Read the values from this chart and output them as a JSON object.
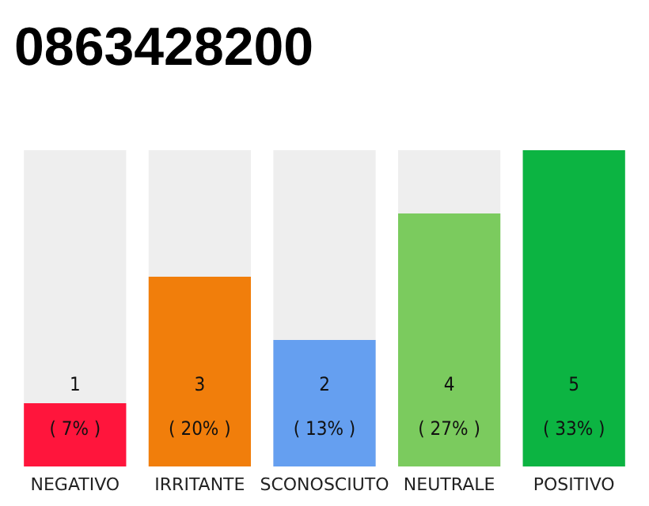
{
  "chart_data": {
    "type": "bar",
    "title": "0863428200",
    "categories": [
      "NEGATIVO",
      "IRRITANTE",
      "SCONOSCIUTO",
      "NEUTRALE",
      "POSITIVO"
    ],
    "values": [
      1,
      3,
      2,
      4,
      5
    ],
    "colors": [
      "#ff153c",
      "#f17e0b",
      "#659ff0",
      "#7bcb5e",
      "#0cb442"
    ],
    "value_labels": [
      "1\n( 7% )",
      "3\n( 20% )",
      "2\n( 13% )",
      "4\n( 27% )",
      "5\n( 33% )"
    ],
    "ylim": [
      0,
      5
    ],
    "tick_labels": "x"
  }
}
